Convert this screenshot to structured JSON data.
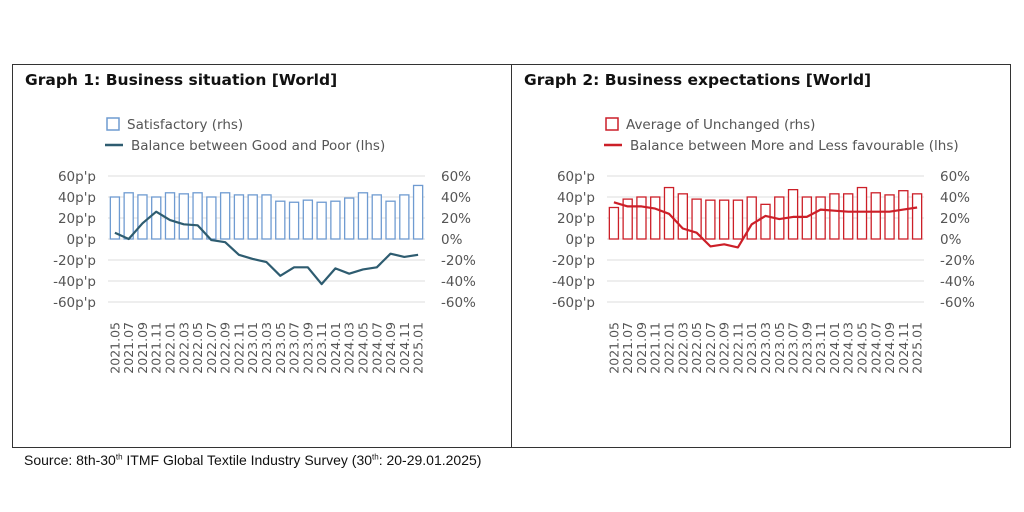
{
  "source": {
    "prefix": "Source: 8th-30",
    "sup1": "th",
    "middle": " ITMF Global Textile Industry Survey (30",
    "sup2": "th",
    "suffix": ": 20-29.01.2025)"
  },
  "chart_data": [
    {
      "type": "bar",
      "title": "Graph 1: Business situation [World]",
      "categories": [
        "2021.05",
        "2021.07",
        "2021.09",
        "2021.11",
        "2022.01",
        "2022.03",
        "2022.05",
        "2022.07",
        "2022.09",
        "2022.11",
        "2023.01",
        "2023.03",
        "2023.05",
        "2023.07",
        "2023.09",
        "2023.11",
        "2024.01",
        "2024.03",
        "2024.05",
        "2024.07",
        "2024.09",
        "2024.11",
        "2025.01"
      ],
      "left_ticks": [
        "60p'p",
        "40p'p",
        "20p'p",
        "0p'p",
        "-20p'p",
        "-40p'p",
        "-60p'p"
      ],
      "right_ticks": [
        "60%",
        "40%",
        "20%",
        "0%",
        "-20%",
        "-40%",
        "-60%"
      ],
      "ylim": [
        -60,
        60
      ],
      "grid": true,
      "legend_position": "top",
      "series": [
        {
          "name": "Satisfactory (rhs)",
          "kind": "bar",
          "axis": "right",
          "color": "#6f9bd1",
          "values": [
            40,
            44,
            42,
            40,
            44,
            43,
            44,
            40,
            44,
            42,
            42,
            42,
            36,
            35,
            37,
            35,
            36,
            39,
            44,
            42,
            36,
            42,
            51
          ]
        },
        {
          "name": "Balance between Good and Poor (lhs)",
          "kind": "line",
          "axis": "left",
          "color": "#2e5c70",
          "values": [
            6,
            0,
            15,
            26,
            18,
            14,
            13,
            -1,
            -3,
            -15,
            -19,
            -22,
            -35,
            -27,
            -27,
            -43,
            -28,
            -33,
            -29,
            -27,
            -14,
            -17,
            -15
          ]
        }
      ]
    },
    {
      "type": "bar",
      "title": "Graph 2: Business expectations [World]",
      "categories": [
        "2021.05",
        "2021.07",
        "2021.09",
        "2021.11",
        "2022.01",
        "2022.03",
        "2022.05",
        "2022.07",
        "2022.09",
        "2022.11",
        "2023.01",
        "2023.03",
        "2023.05",
        "2023.07",
        "2023.09",
        "2023.11",
        "2024.01",
        "2024.03",
        "2024.05",
        "2024.07",
        "2024.09",
        "2024.11",
        "2025.01"
      ],
      "left_ticks": [
        "60p'p",
        "40p'p",
        "20p'p",
        "0p'p",
        "-20p'p",
        "-40p'p",
        "-60p'p"
      ],
      "right_ticks": [
        "60%",
        "40%",
        "20%",
        "0%",
        "-20%",
        "-40%",
        "-60%"
      ],
      "ylim": [
        -60,
        60
      ],
      "grid": true,
      "legend_position": "top",
      "series": [
        {
          "name": "Average of Unchanged (rhs)",
          "kind": "bar",
          "axis": "right",
          "color": "#cc1f28",
          "values": [
            30,
            38,
            40,
            40,
            49,
            43,
            38,
            37,
            37,
            37,
            40,
            33,
            40,
            47,
            40,
            40,
            43,
            43,
            49,
            44,
            42,
            46,
            43
          ]
        },
        {
          "name": "Balance between More and Less favourable (lhs)",
          "kind": "line",
          "axis": "left",
          "color": "#cc1f28",
          "values": [
            35,
            31,
            31,
            29,
            24,
            10,
            6,
            -7,
            -5,
            -8,
            14,
            22,
            19,
            21,
            21,
            28,
            27,
            26,
            26,
            26,
            26,
            28,
            30
          ]
        }
      ]
    }
  ]
}
